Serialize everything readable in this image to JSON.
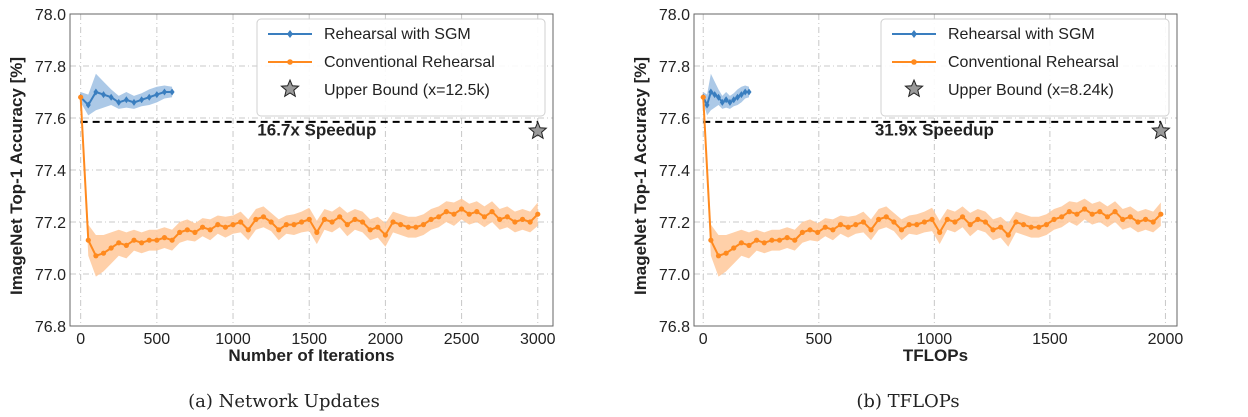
{
  "colors": {
    "sgm": "#3a7ebf",
    "conv": "#ff8a1f",
    "band_sgm": "#9dbfe3",
    "band_conv": "#ffc89a"
  },
  "chart_data": [
    {
      "type": "line",
      "caption": "(a) Network Updates",
      "xlabel": "Number of Iterations",
      "ylabel": "ImageNet Top-1 Accuracy [%]",
      "xlim": [
        -70,
        3100
      ],
      "ylim": [
        76.8,
        78.0
      ],
      "xticks": [
        0,
        500,
        1000,
        1500,
        2000,
        2500,
        3000
      ],
      "yticks": [
        76.8,
        77.0,
        77.2,
        77.4,
        77.6,
        77.8,
        78.0
      ],
      "grid": true,
      "legend_position": "top-right",
      "legend": [
        "Rehearsal with SGM",
        "Conventional Rehearsal",
        "Upper Bound (x=12.5k)"
      ],
      "annotation": {
        "text": "16.7x Speedup",
        "x": 1550,
        "y": 77.555
      },
      "hline": {
        "y": 77.585,
        "x_start": 0,
        "x_end": 3000
      },
      "upper_bound": {
        "x": 3000,
        "y": 77.55
      },
      "series": [
        {
          "name": "Rehearsal with SGM",
          "color_key": "sgm",
          "x": [
            0,
            50,
            100,
            150,
            200,
            250,
            300,
            350,
            400,
            450,
            500,
            550,
            600
          ],
          "y": [
            77.68,
            77.65,
            77.7,
            77.69,
            77.68,
            77.66,
            77.67,
            77.66,
            77.67,
            77.68,
            77.69,
            77.7,
            77.7
          ],
          "band": [
            0.02,
            0.04,
            0.07,
            0.05,
            0.03,
            0.025,
            0.03,
            0.025,
            0.025,
            0.03,
            0.03,
            0.025,
            0.02
          ]
        },
        {
          "name": "Conventional Rehearsal",
          "color_key": "conv",
          "x": [
            0,
            50,
            100,
            150,
            200,
            250,
            300,
            350,
            400,
            450,
            500,
            550,
            600,
            650,
            700,
            750,
            800,
            850,
            900,
            950,
            1000,
            1050,
            1100,
            1150,
            1200,
            1250,
            1300,
            1350,
            1400,
            1450,
            1500,
            1550,
            1600,
            1650,
            1700,
            1750,
            1800,
            1850,
            1900,
            1950,
            2000,
            2050,
            2100,
            2150,
            2200,
            2250,
            2300,
            2350,
            2400,
            2450,
            2500,
            2550,
            2600,
            2650,
            2700,
            2750,
            2800,
            2850,
            2900,
            2950,
            3000
          ],
          "y": [
            77.68,
            77.13,
            77.07,
            77.08,
            77.1,
            77.12,
            77.11,
            77.13,
            77.12,
            77.13,
            77.13,
            77.14,
            77.13,
            77.16,
            77.17,
            77.16,
            77.18,
            77.17,
            77.19,
            77.18,
            77.19,
            77.2,
            77.17,
            77.21,
            77.22,
            77.2,
            77.17,
            77.19,
            77.19,
            77.2,
            77.21,
            77.16,
            77.21,
            77.2,
            77.22,
            77.19,
            77.21,
            77.2,
            77.17,
            77.18,
            77.15,
            77.2,
            77.19,
            77.18,
            77.18,
            77.19,
            77.21,
            77.22,
            77.24,
            77.23,
            77.25,
            77.23,
            77.24,
            77.22,
            77.24,
            77.21,
            77.22,
            77.2,
            77.21,
            77.2,
            77.23
          ],
          "band": [
            0.02,
            0.06,
            0.08,
            0.07,
            0.06,
            0.05,
            0.05,
            0.04,
            0.04,
            0.04,
            0.04,
            0.04,
            0.04,
            0.04,
            0.04,
            0.035,
            0.035,
            0.04,
            0.035,
            0.04,
            0.035,
            0.04,
            0.04,
            0.04,
            0.04,
            0.035,
            0.04,
            0.035,
            0.04,
            0.04,
            0.045,
            0.045,
            0.04,
            0.04,
            0.04,
            0.045,
            0.04,
            0.04,
            0.04,
            0.04,
            0.045,
            0.04,
            0.04,
            0.04,
            0.04,
            0.04,
            0.04,
            0.04,
            0.04,
            0.045,
            0.04,
            0.04,
            0.04,
            0.04,
            0.04,
            0.04,
            0.04,
            0.04,
            0.04,
            0.04,
            0.045
          ]
        }
      ]
    },
    {
      "type": "line",
      "caption": "(b) TFLOPs",
      "xlabel": "TFLOPs",
      "ylabel": "ImageNet Top-1 Accuracy [%]",
      "xlim": [
        -40,
        2050
      ],
      "ylim": [
        76.8,
        78.0
      ],
      "xticks": [
        0,
        500,
        1000,
        1500,
        2000
      ],
      "yticks": [
        76.8,
        77.0,
        77.2,
        77.4,
        77.6,
        77.8,
        78.0
      ],
      "grid": true,
      "legend_position": "top-right",
      "legend": [
        "Rehearsal with SGM",
        "Conventional Rehearsal",
        "Upper Bound (x=8.24k)"
      ],
      "annotation": {
        "text": "31.9x Speedup",
        "x": 1000,
        "y": 77.555
      },
      "hline": {
        "y": 77.585,
        "x_start": 0,
        "x_end": 1980
      },
      "upper_bound": {
        "x": 1980,
        "y": 77.55
      },
      "series": [
        {
          "name": "Rehearsal with SGM",
          "color_key": "sgm",
          "x": [
            0,
            16.5,
            33,
            49.5,
            66,
            82.5,
            99,
            115.5,
            132,
            148.5,
            165,
            181.5,
            198
          ],
          "y": [
            77.68,
            77.65,
            77.7,
            77.69,
            77.68,
            77.66,
            77.67,
            77.66,
            77.67,
            77.68,
            77.69,
            77.7,
            77.7
          ],
          "band": [
            0.02,
            0.04,
            0.07,
            0.05,
            0.03,
            0.025,
            0.03,
            0.025,
            0.025,
            0.03,
            0.03,
            0.025,
            0.02
          ]
        },
        {
          "name": "Conventional Rehearsal",
          "color_key": "conv",
          "x": [
            0,
            33,
            66,
            99,
            132,
            165,
            198,
            231,
            264,
            297,
            330,
            363,
            396,
            429,
            462,
            495,
            528,
            561,
            594,
            627,
            660,
            693,
            726,
            759,
            792,
            825,
            858,
            891,
            924,
            957,
            990,
            1023,
            1056,
            1089,
            1122,
            1155,
            1188,
            1221,
            1254,
            1287,
            1320,
            1353,
            1386,
            1419,
            1452,
            1485,
            1518,
            1551,
            1584,
            1617,
            1650,
            1683,
            1716,
            1749,
            1782,
            1815,
            1848,
            1881,
            1914,
            1947,
            1980
          ],
          "y": [
            77.68,
            77.13,
            77.07,
            77.08,
            77.1,
            77.12,
            77.11,
            77.13,
            77.12,
            77.13,
            77.13,
            77.14,
            77.13,
            77.16,
            77.17,
            77.16,
            77.18,
            77.17,
            77.19,
            77.18,
            77.19,
            77.2,
            77.17,
            77.21,
            77.22,
            77.2,
            77.17,
            77.19,
            77.19,
            77.2,
            77.21,
            77.16,
            77.21,
            77.2,
            77.22,
            77.19,
            77.21,
            77.2,
            77.17,
            77.18,
            77.15,
            77.2,
            77.19,
            77.18,
            77.18,
            77.19,
            77.21,
            77.22,
            77.24,
            77.23,
            77.25,
            77.23,
            77.24,
            77.22,
            77.24,
            77.21,
            77.22,
            77.2,
            77.21,
            77.2,
            77.23
          ],
          "band": [
            0.02,
            0.06,
            0.08,
            0.07,
            0.06,
            0.05,
            0.05,
            0.04,
            0.04,
            0.04,
            0.04,
            0.04,
            0.04,
            0.04,
            0.04,
            0.035,
            0.035,
            0.04,
            0.035,
            0.04,
            0.035,
            0.04,
            0.04,
            0.04,
            0.04,
            0.035,
            0.04,
            0.035,
            0.04,
            0.04,
            0.045,
            0.045,
            0.04,
            0.04,
            0.04,
            0.045,
            0.04,
            0.04,
            0.04,
            0.04,
            0.045,
            0.04,
            0.04,
            0.04,
            0.04,
            0.04,
            0.04,
            0.04,
            0.04,
            0.045,
            0.04,
            0.04,
            0.04,
            0.04,
            0.04,
            0.04,
            0.04,
            0.04,
            0.04,
            0.04,
            0.045
          ]
        }
      ]
    }
  ]
}
